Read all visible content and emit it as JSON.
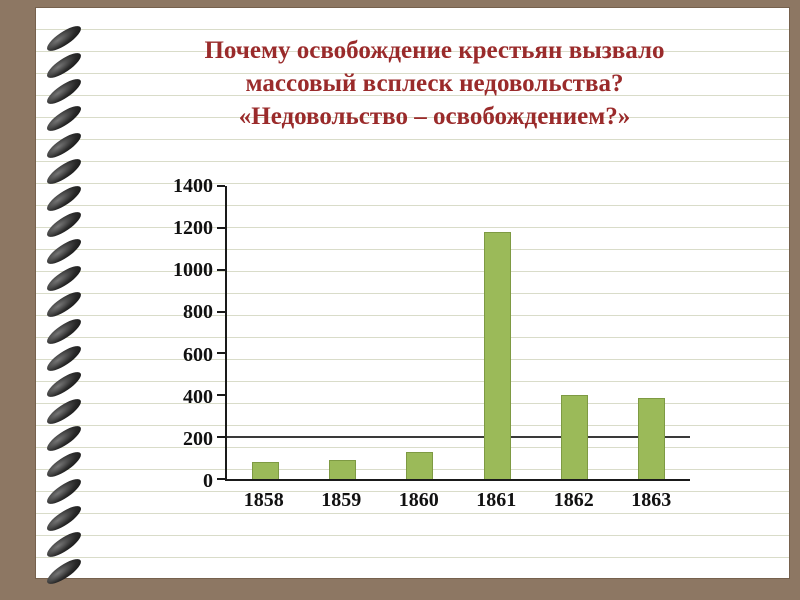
{
  "slide": {
    "title_lines": [
      "Почему освобождение крестьян вызвало",
      "массовый всплеск недовольства?",
      "«Недовольство – освобождением?»"
    ]
  },
  "chart_data": {
    "type": "bar",
    "title": "",
    "xlabel": "",
    "ylabel": "",
    "categories": [
      "1858",
      "1859",
      "1860",
      "1861",
      "1862",
      "1863"
    ],
    "values": [
      80,
      90,
      130,
      1180,
      400,
      385
    ],
    "ylim": [
      0,
      1400
    ],
    "yticks": [
      0,
      200,
      400,
      600,
      800,
      1000,
      1200,
      1400
    ],
    "reference_line_value": 200,
    "grid": false,
    "legend": "none",
    "bar_color": "#9BBA59"
  },
  "colors": {
    "background": "#8D7763",
    "page": "#FFFFFF",
    "ruled_line": "#D9DCC9",
    "title_text": "#9A2B2B",
    "axis": "#1A1A1A",
    "bar": "#9BBA59"
  }
}
